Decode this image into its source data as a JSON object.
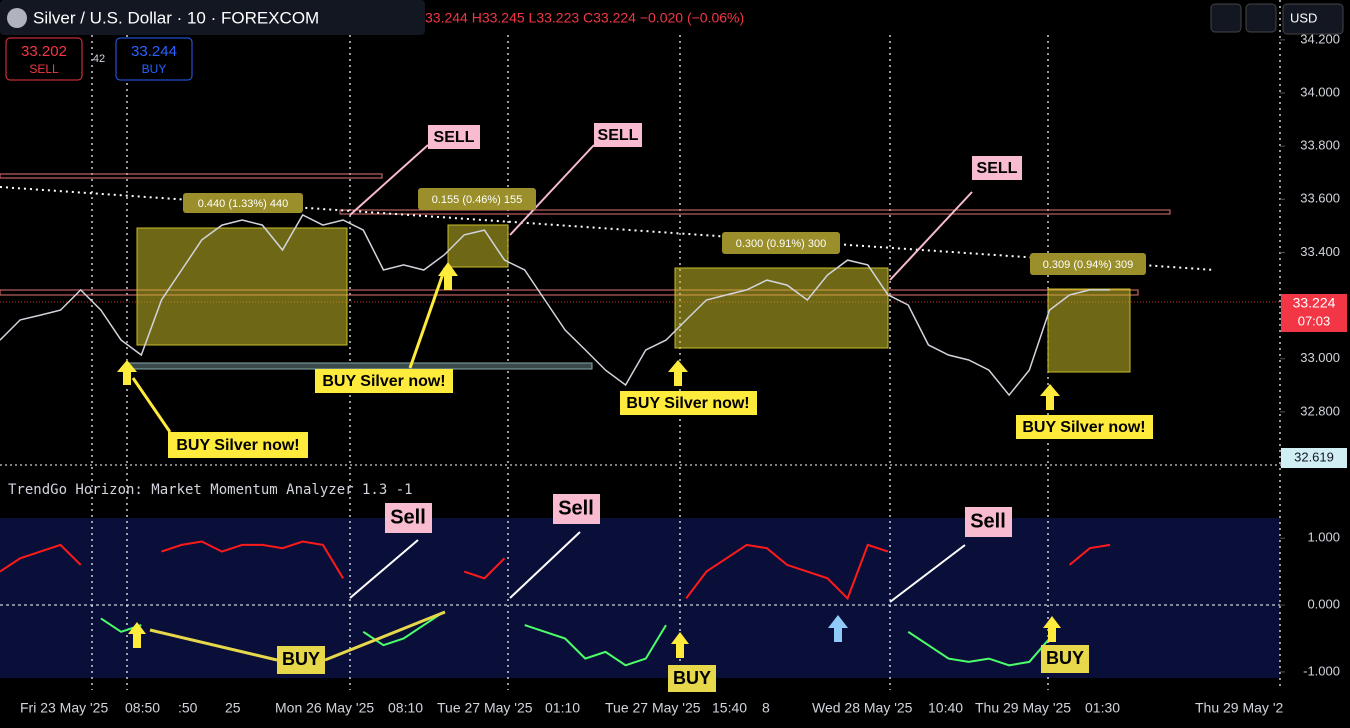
{
  "header": {
    "symbol": "Silver / U.S. Dollar · 10 · FOREXCOM",
    "ohlc": "33.244 H33.245 L33.223 C33.224 −0.020 (−0.06%)",
    "sell_price": "33.202",
    "sell": "SELL",
    "spread": "42",
    "buy_price": "33.244",
    "buy": "BUY",
    "currency": "USD",
    "current_price": "33.224",
    "countdown": "07:03",
    "low_marker": "32.619"
  },
  "indicator_title": "TrendGo Horizon: Market Momentum Analyzer 1.3 -1",
  "annotations": {
    "sell": [
      "SELL",
      "SELL",
      "SELL"
    ],
    "buy": [
      "BUY Silver now!",
      "BUY Silver now!",
      "BUY Silver now!",
      "BUY Silver now!"
    ],
    "measures": [
      "0.440 (1.33%) 440",
      "0.155 (0.46%) 155",
      "0.300 (0.91%) 300",
      "0.309 (0.94%) 309"
    ],
    "osc_sell": [
      "Sell",
      "Sell",
      "Sell"
    ],
    "osc_buy": [
      "BUY",
      "BUY",
      "BUY"
    ]
  },
  "time_labels": [
    "Fri 23 May '25",
    "08:50",
    ":50",
    "25",
    "Mon 26 May '25",
    "08:10",
    "Tue 27 May '25",
    "01:10",
    "Tue 27 May '25",
    "15:40",
    "8",
    "Wed 28 May '25",
    "10:40",
    "Thu 29 May '25",
    "01:30",
    "Thu 29 May '2"
  ],
  "chart_data": [
    {
      "type": "line",
      "color": "#d1d4dc",
      "ylim": [
        32.6,
        34.35
      ],
      "yticks": [
        {
          "value": 34.2,
          "label": "34.200"
        },
        {
          "value": 34.0,
          "label": "34.000"
        },
        {
          "value": 33.8,
          "label": "33.800"
        },
        {
          "value": 33.6,
          "label": "33.600"
        },
        {
          "value": 33.4,
          "label": "33.400"
        },
        {
          "value": 33.0,
          "label": "33.000"
        },
        {
          "value": 32.8,
          "label": "32.800"
        }
      ],
      "values": [
        33.07,
        33.146,
        33.164,
        33.183,
        33.259,
        33.183,
        33.07,
        33.014,
        33.221,
        33.334,
        33.447,
        33.503,
        33.522,
        33.503,
        33.409,
        33.541,
        33.503,
        33.522,
        33.484,
        33.334,
        33.353,
        33.334,
        33.39,
        33.466,
        33.484,
        33.371,
        33.334,
        33.221,
        33.108,
        33.033,
        32.957,
        32.901,
        33.033,
        33.07,
        33.146,
        33.221,
        33.24,
        33.259,
        33.296,
        33.277,
        33.221,
        33.315,
        33.371,
        33.353,
        33.24,
        33.202,
        33.052,
        33.014,
        32.995,
        32.957,
        32.863,
        32.957,
        33.183,
        33.24,
        33.259,
        33.259
      ]
    },
    {
      "type": "line",
      "ylim": [
        -1.27,
        1.9
      ],
      "yticks": [
        {
          "value": 1,
          "label": "1.000"
        },
        {
          "value": 0,
          "label": "0.000"
        },
        {
          "value": -1,
          "label": "-1.000"
        }
      ],
      "series": [
        {
          "color": "#ff1a1a",
          "values": [
            0.5,
            0.7,
            0.8,
            0.9,
            0.6,
            null,
            null,
            null,
            0.8,
            0.9,
            0.95,
            0.8,
            0.9,
            0.9,
            0.85,
            0.95,
            0.9,
            0.4,
            null,
            null,
            null,
            null,
            null,
            0.5,
            0.4,
            0.7,
            null,
            null,
            null,
            null,
            null,
            null,
            null,
            null,
            0.1,
            0.5,
            0.7,
            0.9,
            0.85,
            0.6,
            0.5,
            0.4,
            0.1,
            0.9,
            0.8,
            null,
            null,
            null,
            null,
            null,
            null,
            null,
            null,
            0.6,
            0.85,
            0.9
          ]
        },
        {
          "color": "#4cff6a",
          "values": [
            null,
            null,
            null,
            null,
            null,
            -0.2,
            -0.4,
            -0.3,
            null,
            null,
            null,
            null,
            null,
            null,
            null,
            null,
            null,
            null,
            -0.4,
            -0.6,
            -0.5,
            -0.3,
            -0.1,
            null,
            null,
            null,
            -0.3,
            -0.4,
            -0.5,
            -0.8,
            -0.7,
            -0.9,
            -0.8,
            -0.3,
            null,
            null,
            null,
            null,
            null,
            null,
            null,
            null,
            null,
            null,
            null,
            -0.4,
            -0.6,
            -0.8,
            -0.85,
            -0.8,
            -0.9,
            -0.85,
            -0.5,
            null,
            null,
            null
          ]
        }
      ]
    }
  ]
}
